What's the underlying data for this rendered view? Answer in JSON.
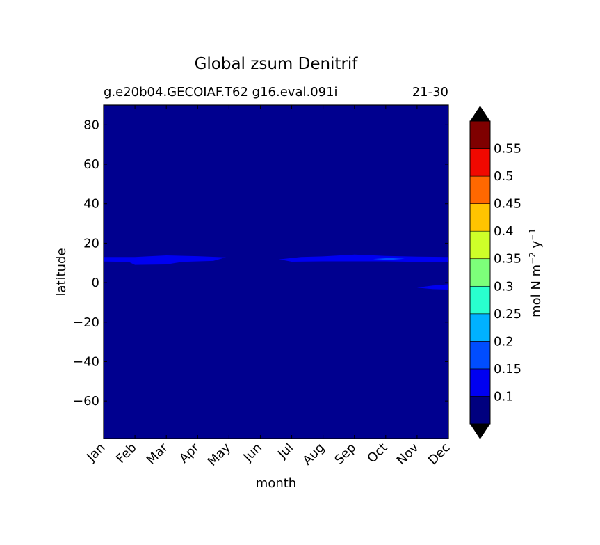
{
  "chart_data": {
    "type": "heatmap",
    "title": "Global zsum Denitrif",
    "subtitle_left": "g.e20b04.GECOIAF.T62 g16.eval.091i",
    "subtitle_right": "21-30",
    "xlabel": "month",
    "ylabel": "latitude",
    "x_ticks": [
      "Jan",
      "Feb",
      "Mar",
      "Apr",
      "May",
      "Jun",
      "Jul",
      "Aug",
      "Sep",
      "Oct",
      "Nov",
      "Dec"
    ],
    "xlim": [
      1,
      12
    ],
    "ylim": [
      -79,
      90
    ],
    "y_ticks": [
      {
        "value": 80,
        "label": "80"
      },
      {
        "value": 60,
        "label": "60"
      },
      {
        "value": 40,
        "label": "40"
      },
      {
        "value": 20,
        "label": "20"
      },
      {
        "value": 0,
        "label": "0"
      },
      {
        "value": -20,
        "label": "−20"
      },
      {
        "value": -40,
        "label": "−40"
      },
      {
        "value": -60,
        "label": "−60"
      }
    ],
    "background_color": "#00008f",
    "colorbar": {
      "label": "mol N m⁻² y⁻¹",
      "label_main": "mol N m",
      "label_exp1": "−2",
      "label_mid": " y",
      "label_exp2": "−1",
      "levels": [
        0.05,
        0.1,
        0.15,
        0.2,
        0.25,
        0.3,
        0.35,
        0.4,
        0.45,
        0.5,
        0.55,
        0.6
      ],
      "tick_values": [
        0.1,
        0.15,
        0.2,
        0.25,
        0.3,
        0.35,
        0.4,
        0.45,
        0.5,
        0.55
      ],
      "tick_labels": [
        "0.1",
        "0.15",
        "0.2",
        "0.25",
        "0.3",
        "0.35",
        "0.4",
        "0.45",
        "0.5",
        "0.55"
      ],
      "colors": [
        "#00007f",
        "#0000f1",
        "#004dff",
        "#00b1ff",
        "#29ffce",
        "#7dff7a",
        "#ceff29",
        "#ffc400",
        "#ff6800",
        "#f10800",
        "#7f0000"
      ],
      "extend": "both",
      "extend_color": "#000000"
    },
    "regions": [
      {
        "level": "0.1-0.15",
        "color": "#0000f1",
        "points": [
          [
            1.0,
            13.0
          ],
          [
            2.0,
            13.0
          ],
          [
            3.0,
            13.8
          ],
          [
            4.0,
            13.4
          ],
          [
            4.9,
            12.8
          ],
          [
            4.5,
            11.0
          ],
          [
            3.5,
            10.5
          ],
          [
            3.0,
            9.2
          ],
          [
            2.0,
            9.0
          ],
          [
            1.8,
            10.5
          ],
          [
            1.0,
            10.7
          ]
        ]
      },
      {
        "level": "0.1-0.15",
        "color": "#0000f1",
        "points": [
          [
            6.6,
            11.8
          ],
          [
            7.3,
            13.0
          ],
          [
            8.0,
            13.3
          ],
          [
            9.0,
            14.2
          ],
          [
            10.0,
            13.5
          ],
          [
            11.0,
            13.2
          ],
          [
            12.0,
            13.0
          ],
          [
            12.0,
            10.5
          ],
          [
            11.0,
            10.5
          ],
          [
            10.0,
            10.8
          ],
          [
            9.0,
            10.8
          ],
          [
            8.0,
            10.8
          ],
          [
            7.0,
            10.6
          ]
        ]
      },
      {
        "level": "0.15-0.2",
        "color": "#004dff",
        "points": [
          [
            9.6,
            12.0
          ],
          [
            10.1,
            12.5
          ],
          [
            10.6,
            12.1
          ],
          [
            10.1,
            11.5
          ]
        ]
      },
      {
        "level": "0.1-0.15",
        "color": "#0000f1",
        "points": [
          [
            11.0,
            -2.5
          ],
          [
            11.5,
            -1.5
          ],
          [
            12.0,
            -0.8
          ],
          [
            12.0,
            -3.5
          ],
          [
            11.5,
            -3.3
          ]
        ]
      }
    ]
  }
}
